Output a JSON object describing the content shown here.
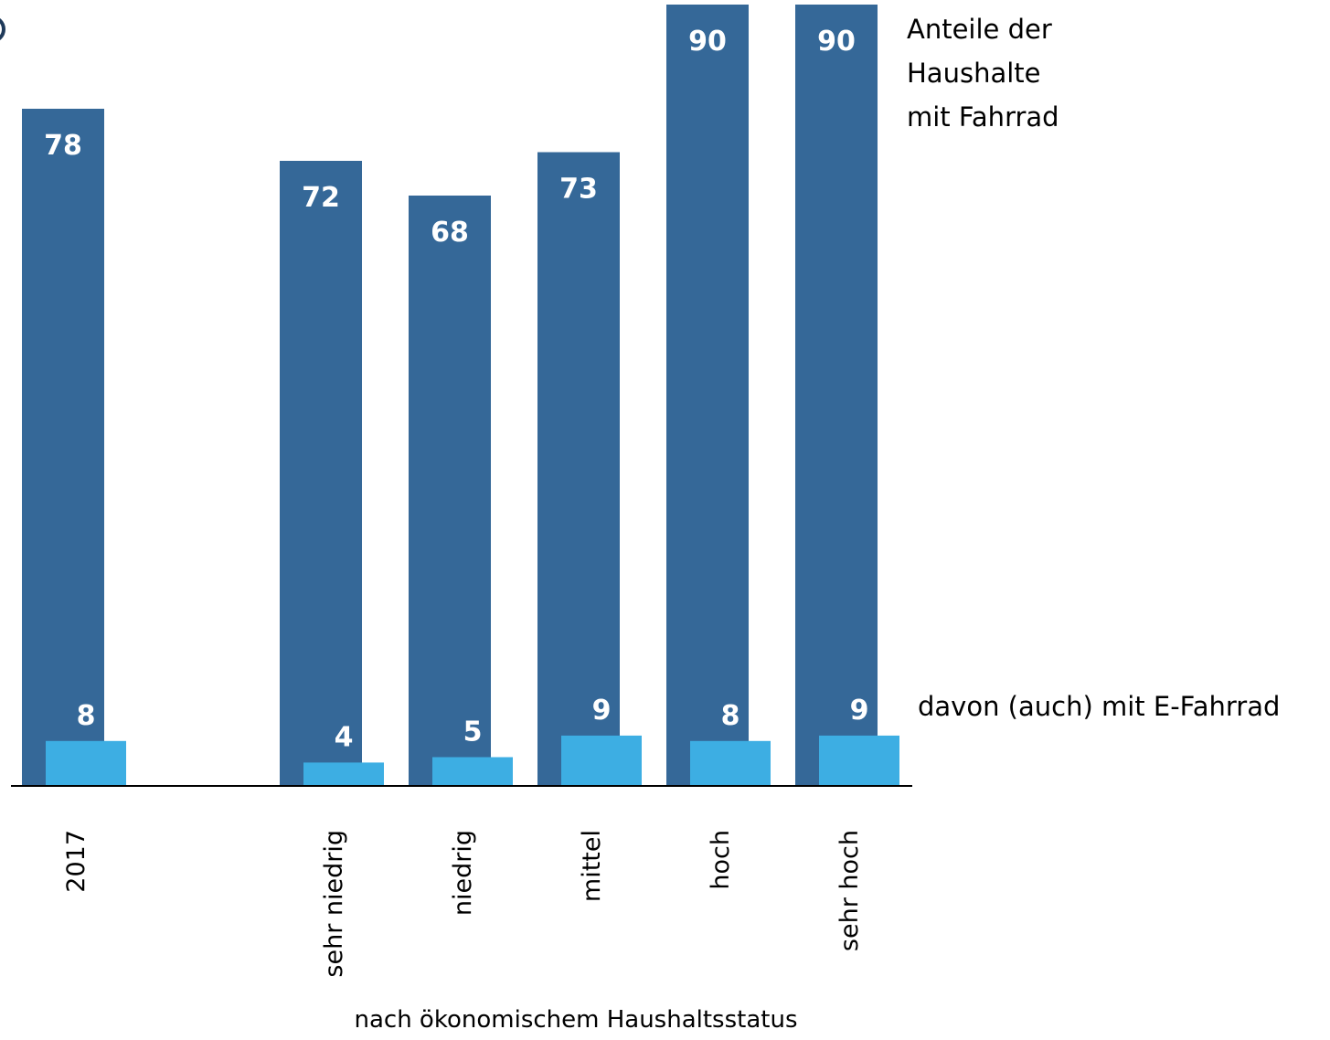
{
  "chart_data": {
    "type": "bar",
    "categories": [
      "2017",
      "sehr niedrig",
      "niedrig",
      "mittel",
      "hoch",
      "sehr hoch"
    ],
    "series": [
      {
        "name": "Anteile der Haushalte mit Fahrrad",
        "values": [
          78,
          72,
          68,
          73,
          90,
          90
        ],
        "color": "#356898"
      },
      {
        "name": "davon (auch) mit E-Fahrrad",
        "values": [
          8,
          4,
          5,
          9,
          8,
          9
        ],
        "color": "#3daee3"
      }
    ],
    "legend": {
      "main_lines": [
        "Anteile der",
        "Haushalte",
        "mit Fahrrad"
      ],
      "sub": "davon (auch) mit E-Fahrrad",
      "placement": "right"
    },
    "xlabel": "nach ökonomischem Haushaltsstatus",
    "ylabel": "",
    "ylim": [
      0,
      100
    ],
    "grid": false
  }
}
